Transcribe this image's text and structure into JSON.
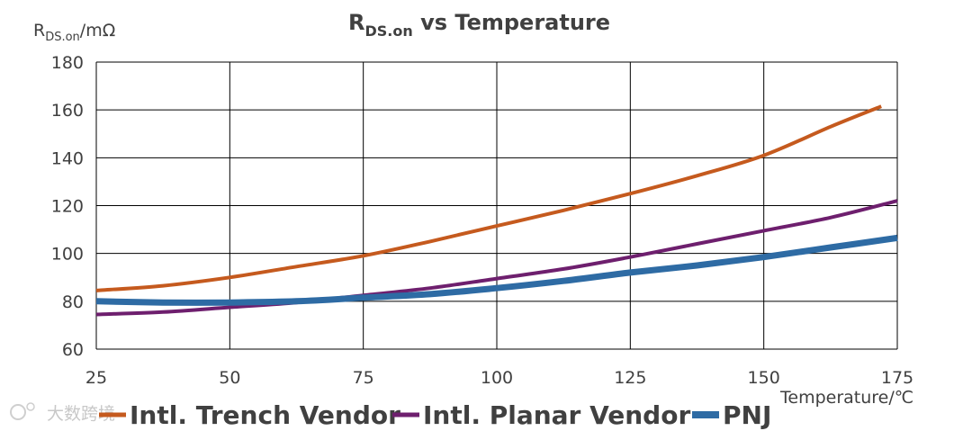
{
  "chart_data": {
    "type": "line",
    "title_main": "R",
    "title_sub": "DS.on",
    "title_rest": " vs Temperature",
    "ylabel_main": "R",
    "ylabel_sub": "DS.on",
    "ylabel_unit": "/mΩ",
    "xlabel": "Temperature/℃",
    "xlim": [
      25,
      175
    ],
    "ylim": [
      60,
      180
    ],
    "xticks": [
      25,
      50,
      75,
      100,
      125,
      150,
      175
    ],
    "yticks": [
      60,
      80,
      100,
      120,
      140,
      160,
      180
    ],
    "grid": true,
    "legend_position": "bottom",
    "series": [
      {
        "name": "Intl. Trench Vendor",
        "color": "#C55A1E",
        "x": [
          25,
          37.5,
          50,
          62.5,
          75,
          87.5,
          100,
          112.5,
          125,
          137.5,
          150,
          162.5,
          172
        ],
        "y": [
          84.5,
          86.5,
          90,
          94.5,
          99,
          105,
          111.5,
          118,
          125,
          132.5,
          141,
          153,
          161.5
        ]
      },
      {
        "name": "Intl. Planar Vendor",
        "color": "#6E1F6E",
        "x": [
          25,
          37.5,
          50,
          62.5,
          75,
          87.5,
          100,
          112.5,
          125,
          137.5,
          150,
          162.5,
          175
        ],
        "y": [
          74.5,
          75.5,
          77.5,
          79.5,
          82.5,
          85.5,
          89.5,
          93.5,
          98.5,
          104,
          109.5,
          115,
          122
        ]
      },
      {
        "name": "PNJ",
        "color": "#2E6BA4",
        "x": [
          25,
          37.5,
          50,
          62.5,
          75,
          87.5,
          100,
          112.5,
          125,
          137.5,
          150,
          162.5,
          175
        ],
        "y": [
          80,
          79.5,
          79.5,
          80,
          81.5,
          83,
          85.5,
          88.5,
          92,
          95,
          98.5,
          102.5,
          106.5
        ]
      }
    ]
  },
  "watermark": "大数跨境"
}
